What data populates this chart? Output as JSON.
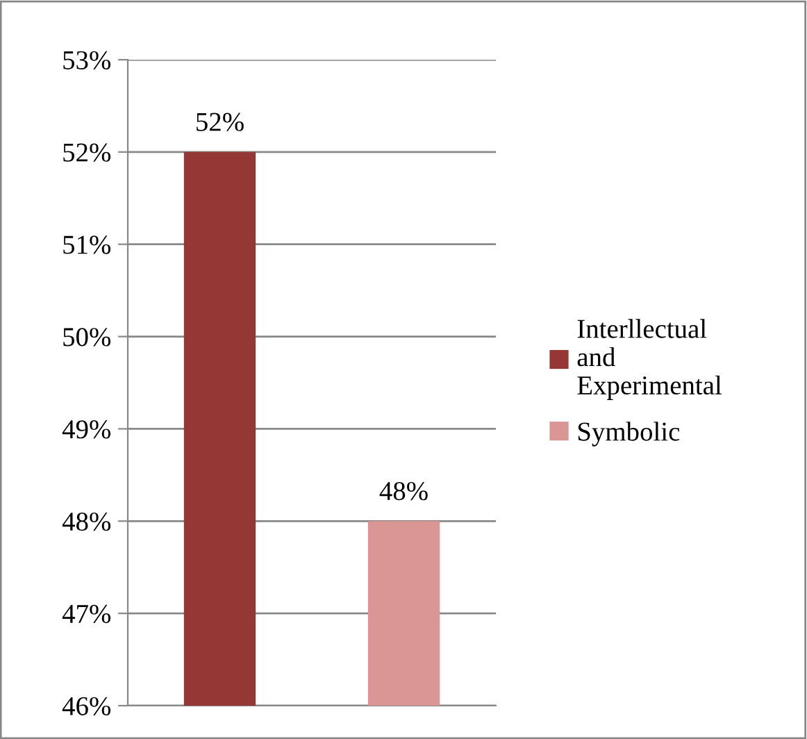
{
  "chart_data": {
    "type": "bar",
    "categories": [
      null,
      null
    ],
    "series": [
      {
        "name": "Interllectual and Experimental",
        "color": "#953735",
        "values": [
          52,
          null
        ],
        "value_labels": [
          "52%",
          null
        ]
      },
      {
        "name": "Symbolic",
        "color": "#d99694",
        "values": [
          null,
          48
        ],
        "value_labels": [
          null,
          "48%"
        ]
      }
    ],
    "ylim": [
      46,
      53
    ],
    "yticks": [
      {
        "value": 46,
        "label": "46%"
      },
      {
        "value": 47,
        "label": "47%"
      },
      {
        "value": 48,
        "label": "48%"
      },
      {
        "value": 49,
        "label": "49%"
      },
      {
        "value": 50,
        "label": "50%"
      },
      {
        "value": 51,
        "label": "51%"
      },
      {
        "value": 52,
        "label": "52%"
      },
      {
        "value": 53,
        "label": "53%"
      }
    ],
    "grid": "y",
    "legend": "right",
    "tick_labels": "y"
  }
}
